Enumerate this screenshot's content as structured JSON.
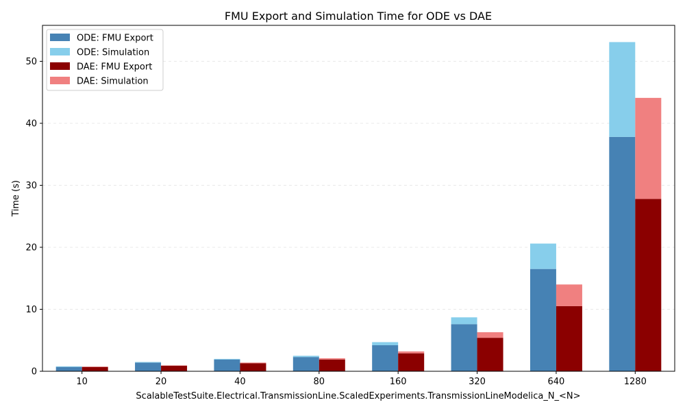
{
  "chart_data": {
    "type": "bar",
    "title": "FMU Export and Simulation Time for ODE vs DAE",
    "xlabel": "ScalableTestSuite.Electrical.TransmissionLine.ScaledExperiments.TransmissionLineModelica_N_<N>",
    "ylabel": "Time (s)",
    "ylim": [
      0,
      55.8
    ],
    "yticks": [
      0,
      10,
      20,
      30,
      40,
      50
    ],
    "categories": [
      "10",
      "20",
      "40",
      "80",
      "160",
      "320",
      "640",
      "1280"
    ],
    "grid": "y-dashed",
    "legend_position": "top-left",
    "series": [
      {
        "name": "ODE: FMU Export",
        "group": "ODE",
        "stack": "base",
        "color": "#4682b4",
        "values": [
          0.7,
          1.4,
          1.9,
          2.3,
          4.2,
          7.6,
          16.5,
          37.8
        ]
      },
      {
        "name": "ODE: Simulation",
        "group": "ODE",
        "stack": "top",
        "color": "#87ceeb",
        "values": [
          0.1,
          0.1,
          0.1,
          0.2,
          0.5,
          1.1,
          4.1,
          15.3
        ]
      },
      {
        "name": "DAE: FMU Export",
        "group": "DAE",
        "stack": "base",
        "color": "#8b0000",
        "values": [
          0.7,
          0.9,
          1.3,
          1.9,
          2.9,
          5.4,
          10.5,
          27.8
        ]
      },
      {
        "name": "DAE: Simulation",
        "group": "DAE",
        "stack": "top",
        "color": "#f08080",
        "values": [
          0.05,
          0.05,
          0.1,
          0.2,
          0.3,
          0.9,
          3.5,
          16.3
        ]
      }
    ]
  }
}
